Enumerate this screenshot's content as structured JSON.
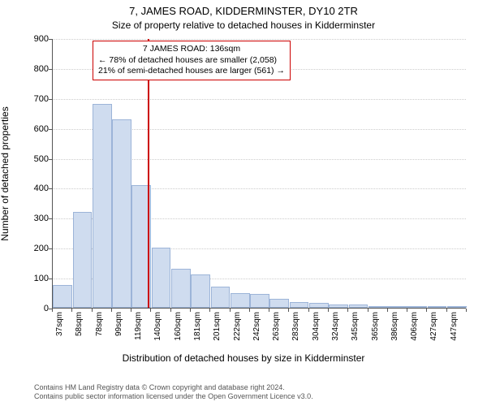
{
  "title": "7, JAMES ROAD, KIDDERMINSTER, DY10 2TR",
  "subtitle": "Size of property relative to detached houses in Kidderminster",
  "ylabel": "Number of detached properties",
  "xlabel": "Distribution of detached houses by size in Kidderminster",
  "chart": {
    "type": "histogram",
    "background_color": "#ffffff",
    "bar_fill": "#cfdcef",
    "bar_stroke": "#9cb4d8",
    "grid_color": "#cccccc",
    "axis_color": "#555555",
    "ref_line_color": "#cc0000",
    "ymin": 0,
    "ymax": 900,
    "ytick_step": 100,
    "xticks": [
      "37sqm",
      "58sqm",
      "78sqm",
      "99sqm",
      "119sqm",
      "140sqm",
      "160sqm",
      "181sqm",
      "201sqm",
      "222sqm",
      "242sqm",
      "263sqm",
      "283sqm",
      "304sqm",
      "324sqm",
      "345sqm",
      "365sqm",
      "386sqm",
      "406sqm",
      "427sqm",
      "447sqm"
    ],
    "values": [
      75,
      320,
      680,
      630,
      410,
      200,
      130,
      110,
      70,
      50,
      45,
      30,
      20,
      15,
      10,
      10,
      5,
      5,
      5,
      3,
      3
    ],
    "ref_value": 136,
    "xtick_label_fontsize": 10,
    "ytick_label_fontsize": 11,
    "title_fontsize": 13,
    "subtitle_fontsize": 12,
    "axis_label_fontsize": 12
  },
  "annotation": {
    "line1": "7 JAMES ROAD: 136sqm",
    "line2": "← 78% of detached houses are smaller (2,058)",
    "line3": "21% of semi-detached houses are larger (561) →",
    "border_color": "#cc0000",
    "background_color": "#ffffff",
    "fontsize": 10.5
  },
  "footer": {
    "line1": "Contains HM Land Registry data © Crown copyright and database right 2024.",
    "line2": "Contains public sector information licensed under the Open Government Licence v3.0.",
    "fontsize": 9,
    "color": "#555555"
  }
}
